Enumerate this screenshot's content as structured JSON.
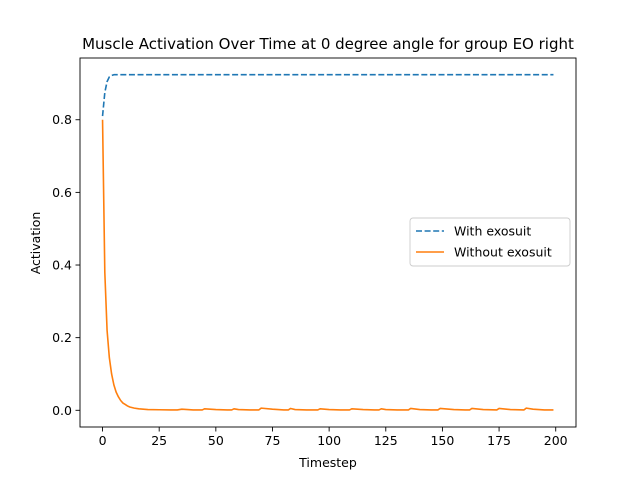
{
  "chart_data": {
    "type": "line",
    "title": "Muscle Activation Over Time at 0 degree angle for group EO right",
    "xlabel": "Timestep",
    "ylabel": "Activation",
    "xlim": [
      -9.95,
      208.95
    ],
    "ylim": [
      -0.046,
      0.97
    ],
    "xticks": [
      0,
      25,
      50,
      75,
      100,
      125,
      150,
      175,
      200
    ],
    "yticks": [
      0.0,
      0.2,
      0.4,
      0.6,
      0.8
    ],
    "xtick_labels": [
      "0",
      "25",
      "50",
      "75",
      "100",
      "125",
      "150",
      "175",
      "200"
    ],
    "ytick_labels": [
      "0.0",
      "0.2",
      "0.4",
      "0.6",
      "0.8"
    ],
    "grid": false,
    "legend_position": "center-right",
    "series": [
      {
        "name": "With exosuit",
        "color": "#1f77b4",
        "style": "dashed",
        "x": [
          0,
          1,
          2,
          3,
          4,
          5,
          199
        ],
        "y": [
          0.81,
          0.875,
          0.905,
          0.918,
          0.922,
          0.924,
          0.924
        ]
      },
      {
        "name": "Without exosuit",
        "color": "#ff7f0e",
        "style": "solid",
        "x": [
          0,
          1,
          2,
          3,
          4,
          5,
          6,
          7,
          8,
          9,
          10,
          11,
          12,
          14,
          16,
          18,
          20,
          25,
          30,
          33,
          35,
          40,
          44,
          45,
          50,
          55,
          57,
          58,
          60,
          65,
          69,
          70,
          75,
          80,
          82,
          83,
          85,
          90,
          95,
          96,
          100,
          105,
          109,
          110,
          115,
          120,
          122,
          123,
          125,
          130,
          135,
          136,
          140,
          145,
          148,
          149,
          155,
          160,
          162,
          163,
          168,
          174,
          175,
          180,
          186,
          187,
          190,
          195,
          199
        ],
        "y": [
          0.8,
          0.38,
          0.22,
          0.145,
          0.1,
          0.07,
          0.05,
          0.037,
          0.027,
          0.02,
          0.016,
          0.012,
          0.009,
          0.006,
          0.004,
          0.003,
          0.002,
          0.0015,
          0.001,
          0.001,
          0.003,
          0.001,
          0.001,
          0.004,
          0.002,
          0.001,
          0.001,
          0.004,
          0.002,
          0.001,
          0.001,
          0.006,
          0.003,
          0.001,
          0.001,
          0.005,
          0.002,
          0.001,
          0.001,
          0.004,
          0.002,
          0.001,
          0.001,
          0.004,
          0.002,
          0.001,
          0.001,
          0.004,
          0.002,
          0.001,
          0.001,
          0.005,
          0.002,
          0.001,
          0.001,
          0.005,
          0.002,
          0.001,
          0.001,
          0.005,
          0.002,
          0.001,
          0.005,
          0.002,
          0.001,
          0.006,
          0.003,
          0.001,
          0.001
        ]
      }
    ]
  }
}
